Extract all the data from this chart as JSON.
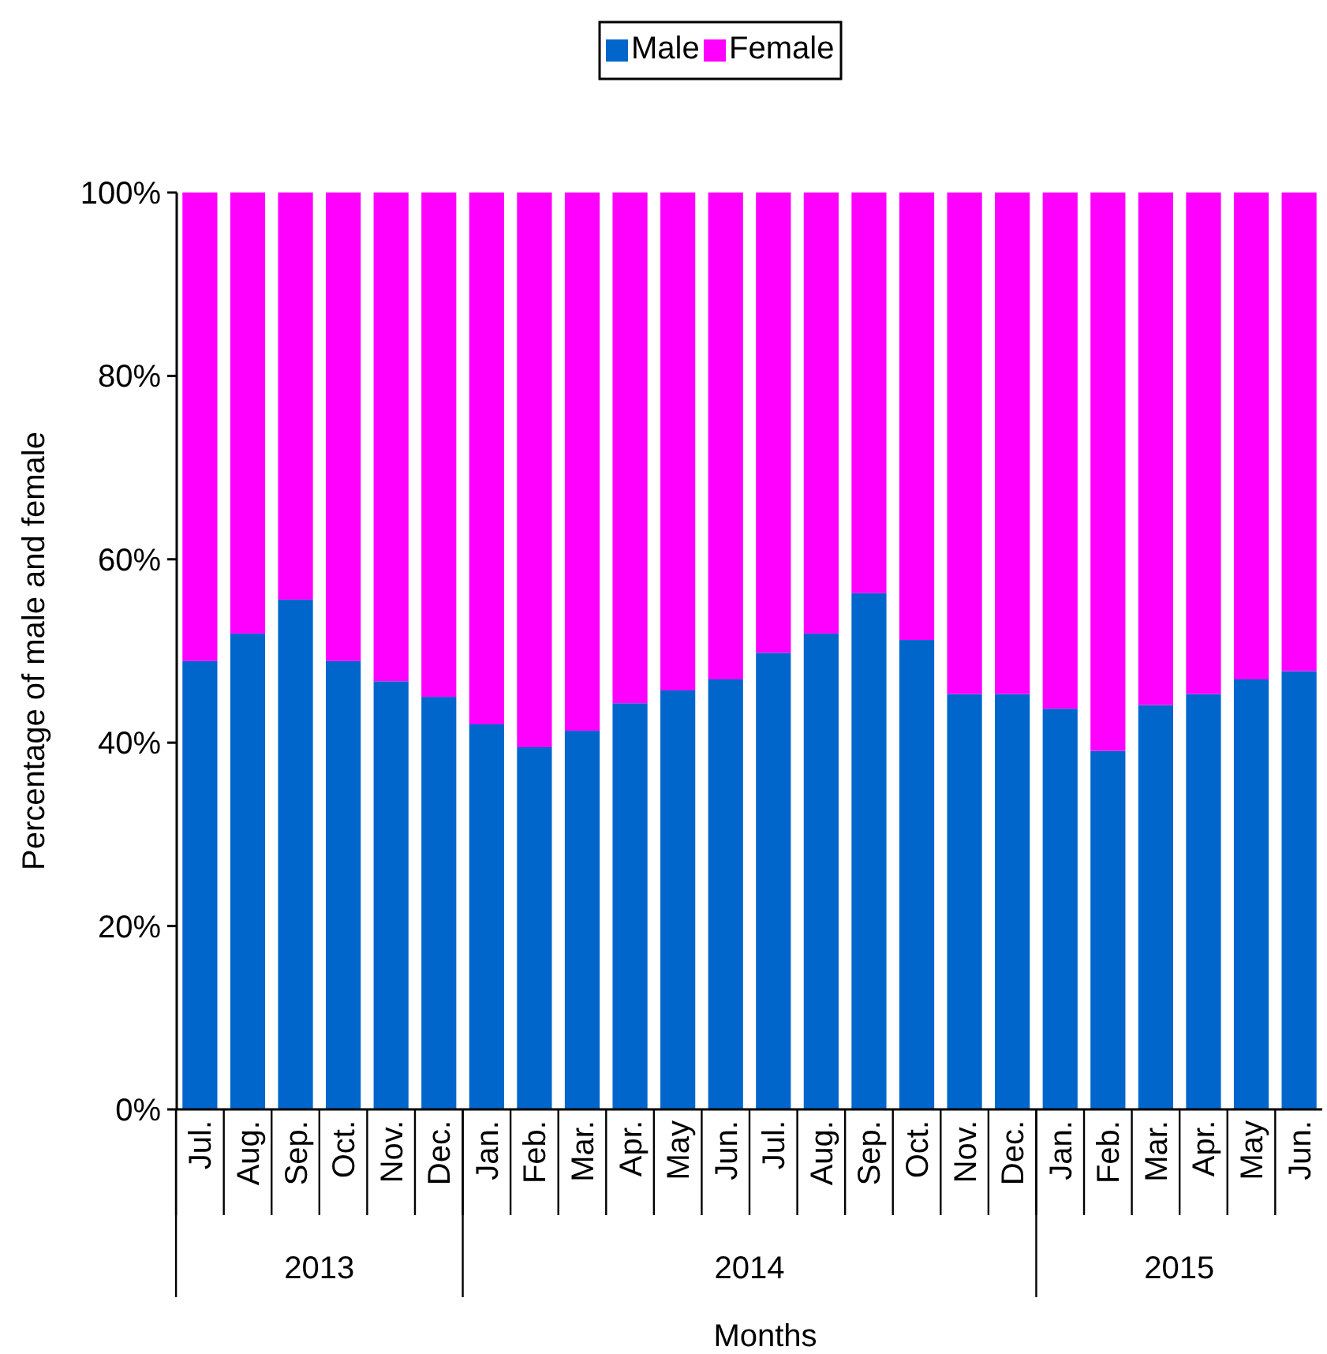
{
  "chart_data": {
    "type": "bar",
    "stacked": true,
    "xlabel": "Months",
    "ylabel": "Percentage of male and female",
    "categories": [
      "Jul.",
      "Aug.",
      "Sep.",
      "Oct.",
      "Nov.",
      "Dec.",
      "Jan.",
      "Feb.",
      "Mar.",
      "Apr.",
      "May",
      "Jun.",
      "Jul.",
      "Aug.",
      "Sep.",
      "Oct.",
      "Nov.",
      "Dec.",
      "Jan.",
      "Feb.",
      "Mar.",
      "Apr.",
      "May",
      "Jun."
    ],
    "series": [
      {
        "name": "Male",
        "color": "#0066cc",
        "values": [
          48.9,
          51.9,
          55.6,
          48.9,
          46.7,
          45.0,
          42.0,
          39.5,
          41.3,
          44.3,
          45.7,
          46.9,
          49.8,
          51.9,
          56.3,
          51.2,
          45.3,
          45.3,
          43.7,
          39.1,
          44.1,
          45.3,
          46.9,
          47.8
        ]
      },
      {
        "name": "Female",
        "color": "#ff00ff",
        "values": [
          51.1,
          48.1,
          44.4,
          51.1,
          53.3,
          55.0,
          58.0,
          60.5,
          58.7,
          55.7,
          54.3,
          53.1,
          50.2,
          48.1,
          43.7,
          48.8,
          54.7,
          54.7,
          56.3,
          60.9,
          55.9,
          54.7,
          53.1,
          52.2
        ]
      }
    ],
    "annotations": [
      "2013",
      "2014",
      "2015"
    ],
    "ylim": [
      0,
      100
    ],
    "yticks": [
      {
        "value": 0,
        "label": "0%"
      },
      {
        "value": 20,
        "label": "20%"
      },
      {
        "value": 40,
        "label": "40%"
      },
      {
        "value": 60,
        "label": "60%"
      },
      {
        "value": 80,
        "label": "80%"
      },
      {
        "value": 100,
        "label": "100%"
      }
    ],
    "legend": "top"
  }
}
